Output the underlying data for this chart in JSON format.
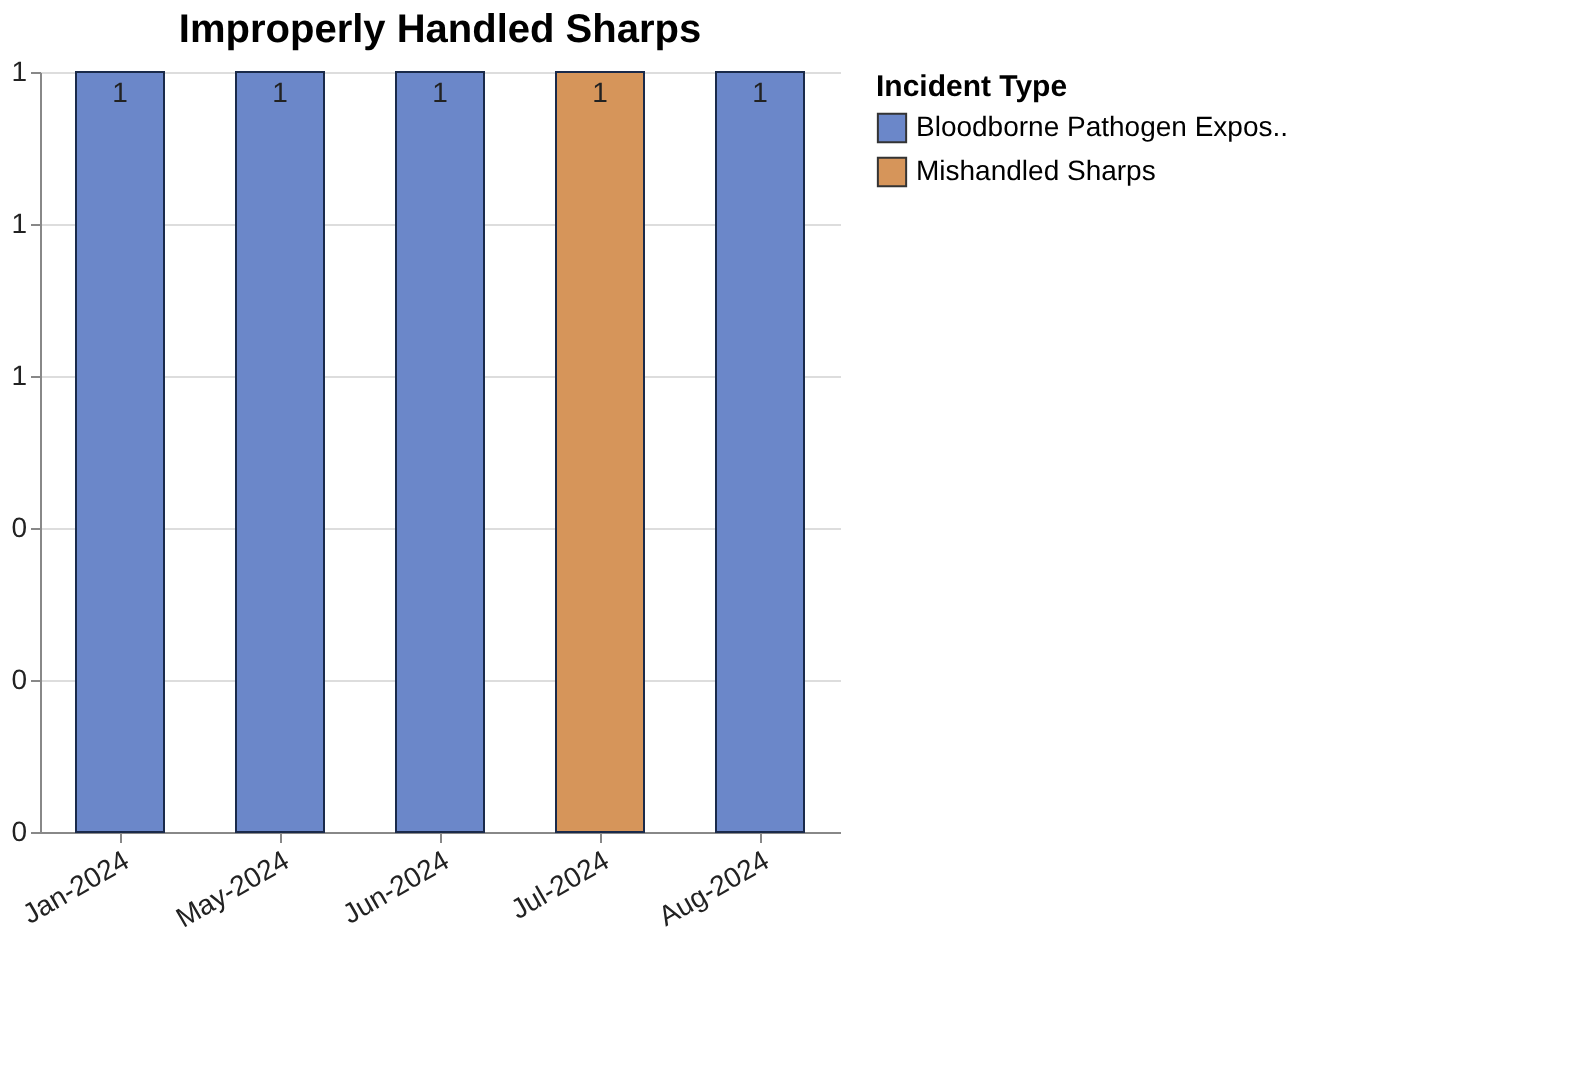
{
  "chart_data": {
    "type": "bar",
    "title": "Improperly Handled Sharps",
    "legend_title": "Incident Type",
    "categories": [
      "Jan-2024",
      "May-2024",
      "Jun-2024",
      "Jul-2024",
      "Aug-2024"
    ],
    "series": [
      {
        "name": "Bloodborne Pathogen Expos..",
        "color": "#6b87c9",
        "values": [
          1,
          1,
          1,
          null,
          1
        ]
      },
      {
        "name": "Mishandled Sharps",
        "color": "#d6955a",
        "values": [
          null,
          null,
          null,
          1,
          null
        ]
      }
    ],
    "ylim": [
      0,
      1
    ],
    "yticks": [
      {
        "value": 0,
        "label": "0"
      },
      {
        "value": 0.2,
        "label": "0"
      },
      {
        "value": 0.4,
        "label": "0"
      },
      {
        "value": 0.6,
        "label": "1"
      },
      {
        "value": 0.8,
        "label": "1"
      },
      {
        "value": 1,
        "label": "1"
      }
    ],
    "grid": "y",
    "legend": "top right",
    "data_labels": true
  }
}
